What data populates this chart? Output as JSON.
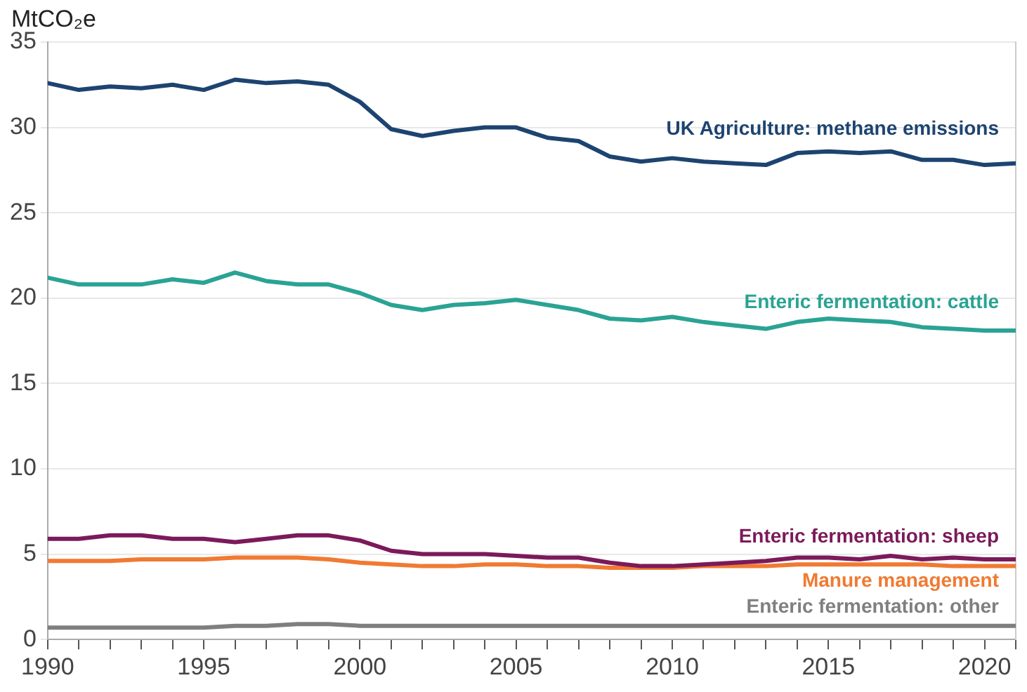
{
  "chart_data": {
    "type": "line",
    "ylabel": "MtCO₂e",
    "x": [
      1990,
      1991,
      1992,
      1993,
      1994,
      1995,
      1996,
      1997,
      1998,
      1999,
      2000,
      2001,
      2002,
      2003,
      2004,
      2005,
      2006,
      2007,
      2008,
      2009,
      2010,
      2011,
      2012,
      2013,
      2014,
      2015,
      2016,
      2017,
      2018,
      2019,
      2020,
      2021
    ],
    "xlim": [
      1990,
      2021
    ],
    "xticks": [
      1990,
      {
        "value": 1991,
        "label": null
      },
      {
        "value": 1992,
        "label": null
      },
      {
        "value": 1993,
        "label": null
      },
      {
        "value": 1994,
        "label": null
      },
      1995,
      {
        "value": 1996,
        "label": null
      },
      {
        "value": 1997,
        "label": null
      },
      {
        "value": 1998,
        "label": null
      },
      {
        "value": 1999,
        "label": null
      },
      2000,
      {
        "value": 2001,
        "label": null
      },
      {
        "value": 2002,
        "label": null
      },
      {
        "value": 2003,
        "label": null
      },
      {
        "value": 2004,
        "label": null
      },
      2005,
      {
        "value": 2006,
        "label": null
      },
      {
        "value": 2007,
        "label": null
      },
      {
        "value": 2008,
        "label": null
      },
      {
        "value": 2009,
        "label": null
      },
      2010,
      {
        "value": 2011,
        "label": null
      },
      {
        "value": 2012,
        "label": null
      },
      {
        "value": 2013,
        "label": null
      },
      {
        "value": 2014,
        "label": null
      },
      2015,
      {
        "value": 2016,
        "label": null
      },
      {
        "value": 2017,
        "label": null
      },
      {
        "value": 2018,
        "label": null
      },
      {
        "value": 2019,
        "label": null
      },
      2020,
      {
        "value": 2021,
        "label": null
      }
    ],
    "ylim": [
      0,
      35
    ],
    "yticks": [
      0,
      5,
      10,
      15,
      20,
      25,
      30,
      35
    ],
    "grid": "y",
    "legend": false,
    "marker": "none",
    "line_style": "solid",
    "series": [
      {
        "name": "UK Agriculture: methane emissions",
        "color": "#1d4470",
        "values": [
          32.6,
          32.2,
          32.4,
          32.3,
          32.5,
          32.2,
          32.8,
          32.6,
          32.7,
          32.5,
          31.5,
          29.9,
          29.5,
          29.8,
          30.0,
          30.0,
          29.4,
          29.2,
          28.3,
          28.0,
          28.2,
          28.0,
          27.9,
          27.8,
          28.5,
          28.6,
          28.5,
          28.6,
          28.1,
          28.1,
          27.8,
          27.9
        ]
      },
      {
        "name": "Enteric fermentation: cattle",
        "color": "#2aa394",
        "values": [
          21.2,
          20.8,
          20.8,
          20.8,
          21.1,
          20.9,
          21.5,
          21.0,
          20.8,
          20.8,
          20.3,
          19.6,
          19.3,
          19.6,
          19.7,
          19.9,
          19.6,
          19.3,
          18.8,
          18.7,
          18.9,
          18.6,
          18.4,
          18.2,
          18.6,
          18.8,
          18.7,
          18.6,
          18.3,
          18.2,
          18.1,
          18.1
        ]
      },
      {
        "name": "Enteric fermentation: sheep",
        "color": "#7b1a5a",
        "values": [
          5.9,
          5.9,
          6.1,
          6.1,
          5.9,
          5.9,
          5.7,
          5.9,
          6.1,
          6.1,
          5.8,
          5.2,
          5.0,
          5.0,
          5.0,
          4.9,
          4.8,
          4.8,
          4.5,
          4.3,
          4.3,
          4.4,
          4.5,
          4.6,
          4.8,
          4.8,
          4.7,
          4.9,
          4.7,
          4.8,
          4.7,
          4.7
        ]
      },
      {
        "name": "Manure management",
        "color": "#f07a32",
        "values": [
          4.6,
          4.6,
          4.6,
          4.7,
          4.7,
          4.7,
          4.8,
          4.8,
          4.8,
          4.7,
          4.5,
          4.4,
          4.3,
          4.3,
          4.4,
          4.4,
          4.3,
          4.3,
          4.2,
          4.2,
          4.2,
          4.3,
          4.3,
          4.3,
          4.4,
          4.4,
          4.4,
          4.4,
          4.4,
          4.3,
          4.3,
          4.3
        ]
      },
      {
        "name": "Enteric fermentation: other",
        "color": "#7f7f7f",
        "values": [
          0.7,
          0.7,
          0.7,
          0.7,
          0.7,
          0.7,
          0.8,
          0.8,
          0.9,
          0.9,
          0.8,
          0.8,
          0.8,
          0.8,
          0.8,
          0.8,
          0.8,
          0.8,
          0.8,
          0.8,
          0.8,
          0.8,
          0.8,
          0.8,
          0.8,
          0.8,
          0.8,
          0.8,
          0.8,
          0.8,
          0.8,
          0.8
        ]
      }
    ]
  }
}
